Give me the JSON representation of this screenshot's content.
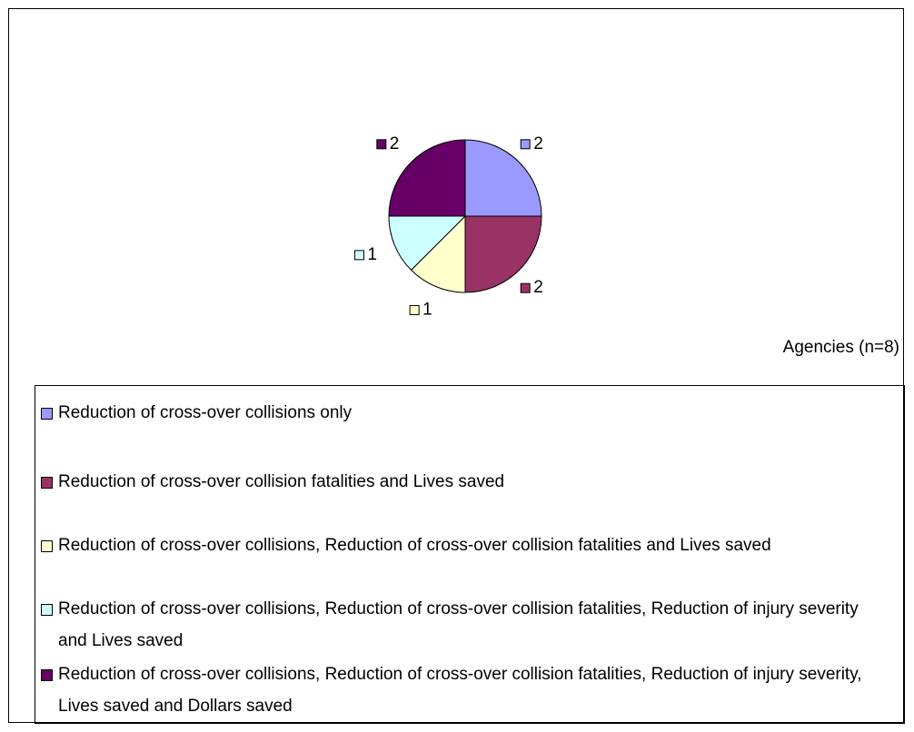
{
  "chart_data": {
    "type": "pie",
    "categories": [
      "Reduction of cross-over collisions only",
      "Reduction of cross-over collision fatalities and Lives saved",
      "Reduction of cross-over collisions, Reduction of cross-over collision fatalities and Lives saved",
      "Reduction of cross-over collisions, Reduction of cross-over collision fatalities, Reduction of injury severity and Lives saved",
      "Reduction of cross-over collisions, Reduction of cross-over collision fatalities, Reduction of injury severity, Lives saved and Dollars saved"
    ],
    "values": [
      2,
      2,
      1,
      1,
      2
    ],
    "colors": [
      "#9999ff",
      "#993366",
      "#ffffcc",
      "#ccffff",
      "#660066"
    ],
    "annotation": "Agencies (n=8)"
  }
}
